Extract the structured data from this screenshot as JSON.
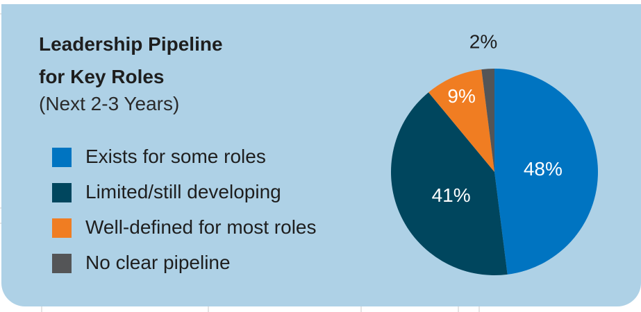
{
  "colors": {
    "card_bg": "#aed1e6",
    "exists": "#0074c1",
    "limited": "#00465e",
    "well_defined": "#f07d22",
    "no_clear": "#545557"
  },
  "header": {
    "title_line1": "Leadership Pipeline",
    "title_line2": "for Key Roles",
    "subtitle": "(Next 2-3 Years)"
  },
  "chart_data": {
    "type": "pie",
    "title": "Leadership Pipeline for Key Roles",
    "subtitle": "(Next 2-3 Years)",
    "legend_position": "left",
    "slices": [
      {
        "name": "Exists for some roles",
        "value": 48,
        "label": "48%",
        "color": "#0074c1"
      },
      {
        "name": "Limited/still developing",
        "value": 41,
        "label": "41%",
        "color": "#00465e"
      },
      {
        "name": "Well-defined for most roles",
        "value": 9,
        "label": "9%",
        "color": "#f07d22"
      },
      {
        "name": "No clear pipeline",
        "value": 2,
        "label": "2%",
        "color": "#545557"
      }
    ]
  }
}
